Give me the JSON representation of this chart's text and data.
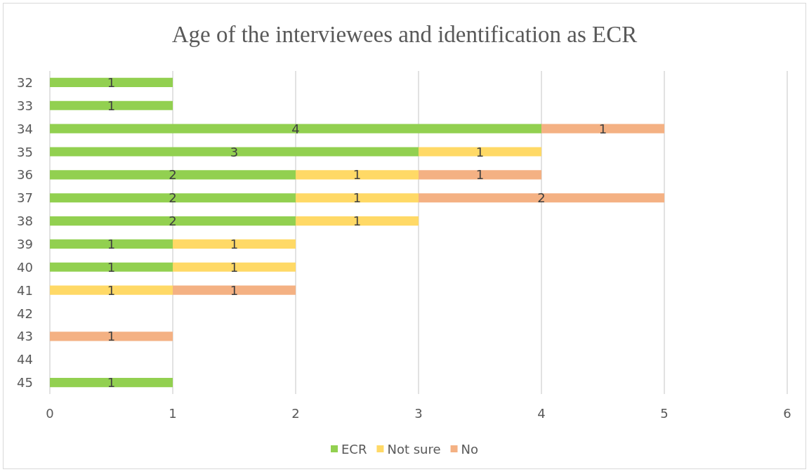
{
  "chart_data": {
    "type": "bar",
    "title": "Age of the interviewees and identification as ECR",
    "orientation": "horizontal",
    "stacked": true,
    "data_labels": true,
    "grid": "x",
    "legend": "bottom",
    "categories": [
      "32",
      "33",
      "34",
      "35",
      "36",
      "37",
      "38",
      "39",
      "40",
      "41",
      "42",
      "43",
      "44",
      "45"
    ],
    "xlim": [
      0,
      6
    ],
    "xticks": [
      0,
      1,
      2,
      3,
      4,
      5,
      6
    ],
    "series": [
      {
        "name": "ECR",
        "color": "#92d050",
        "values": [
          1,
          1,
          4,
          3,
          2,
          2,
          2,
          1,
          1,
          null,
          null,
          null,
          null,
          1
        ]
      },
      {
        "name": "Not sure",
        "color": "#ffd966",
        "values": [
          null,
          null,
          null,
          1,
          1,
          1,
          1,
          1,
          1,
          1,
          null,
          null,
          null,
          null
        ]
      },
      {
        "name": "No",
        "color": "#f4b183",
        "values": [
          null,
          null,
          1,
          null,
          1,
          2,
          null,
          null,
          null,
          1,
          null,
          1,
          null,
          null
        ]
      }
    ]
  }
}
